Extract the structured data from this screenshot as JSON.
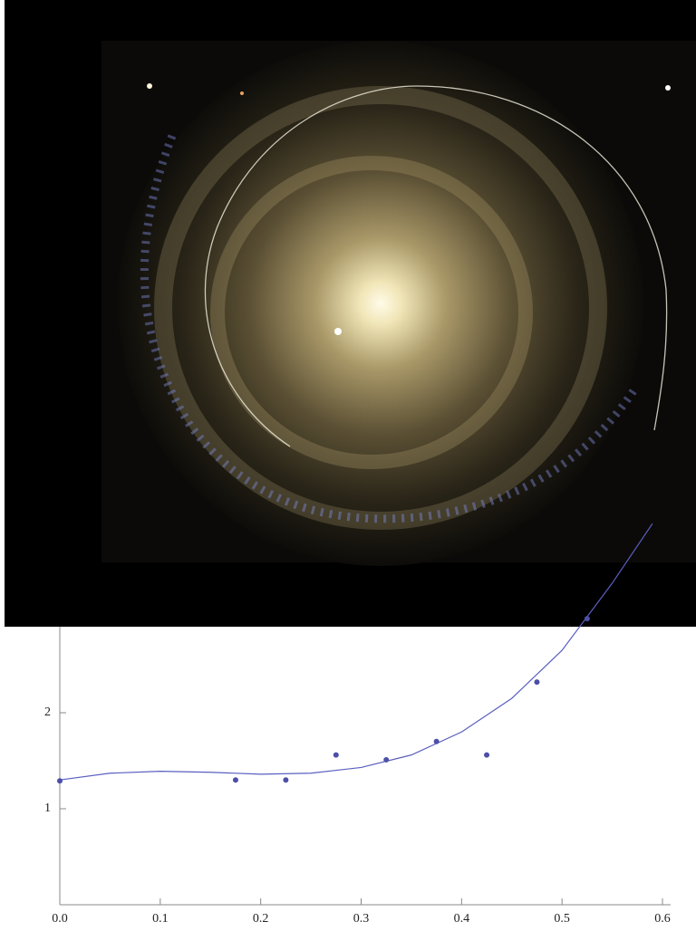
{
  "chart_data": {
    "type": "scatter",
    "points": {
      "color": "#4b4fa8",
      "x": [
        0.0,
        0.175,
        0.225,
        0.275,
        0.325,
        0.375,
        0.425,
        0.475,
        0.525
      ],
      "values": [
        1.29,
        1.3,
        1.3,
        1.56,
        1.51,
        1.7,
        1.56,
        2.32,
        2.98
      ]
    },
    "fit": {
      "color": "#5a5fc0",
      "x": [
        0.0,
        0.05,
        0.1,
        0.15,
        0.2,
        0.25,
        0.3,
        0.35,
        0.4,
        0.45,
        0.5,
        0.55,
        0.59
      ],
      "values": [
        1.3,
        1.37,
        1.39,
        1.38,
        1.36,
        1.37,
        1.43,
        1.56,
        1.8,
        2.15,
        2.65,
        3.35,
        3.97
      ]
    },
    "xlim": [
      0.0,
      0.6
    ],
    "ylim": [
      0,
      4
    ],
    "xticks": [
      {
        "value": 0.0,
        "label": "0.0"
      },
      {
        "value": 0.1,
        "label": "0.1"
      },
      {
        "value": 0.2,
        "label": "0.2"
      },
      {
        "value": 0.3,
        "label": "0.3"
      },
      {
        "value": 0.4,
        "label": "0.4"
      },
      {
        "value": 0.5,
        "label": "0.5"
      },
      {
        "value": 0.6,
        "label": "0.6"
      }
    ],
    "yticks": [
      1,
      2
    ]
  }
}
